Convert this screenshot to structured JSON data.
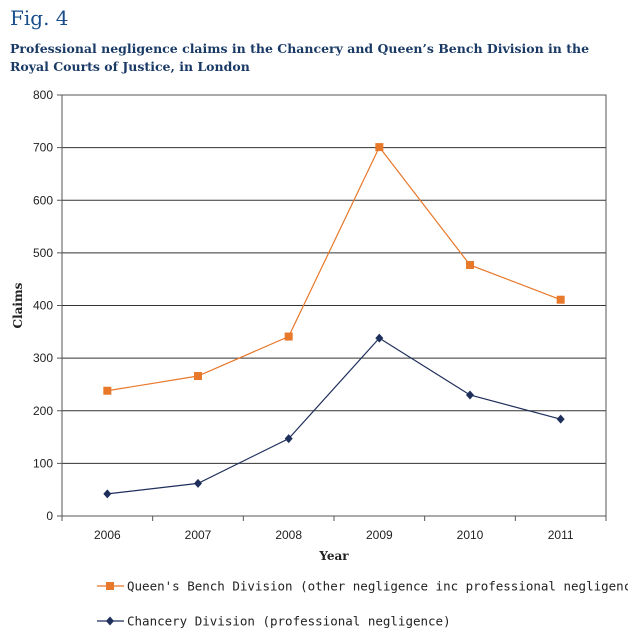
{
  "figure": {
    "label": "Fig. 4",
    "title": "Professional negligence claims in the Chancery and Queen’s Bench Division in the Royal Courts of Justice, in London"
  },
  "chart_data": {
    "type": "line",
    "title": "Professional negligence claims in the Chancery and Queen’s Bench Division in the Royal Courts of Justice, in London",
    "xlabel": "Year",
    "ylabel": "Claims",
    "categories": [
      "2006",
      "2007",
      "2008",
      "2009",
      "2010",
      "2011"
    ],
    "ylim": [
      0,
      800
    ],
    "yticks": [
      0,
      100,
      200,
      300,
      400,
      500,
      600,
      700,
      800
    ],
    "grid": true,
    "legend_position": "bottom",
    "series": [
      {
        "name": "Queen's Bench Division (other negligence inc professional negligence)",
        "marker": "square",
        "color": "#e8782a",
        "values": [
          238,
          266,
          341,
          701,
          477,
          411
        ]
      },
      {
        "name": "Chancery Division (professional negligence)",
        "marker": "diamond",
        "color": "#1f2f5c",
        "values": [
          42,
          62,
          147,
          338,
          230,
          184
        ]
      }
    ]
  }
}
